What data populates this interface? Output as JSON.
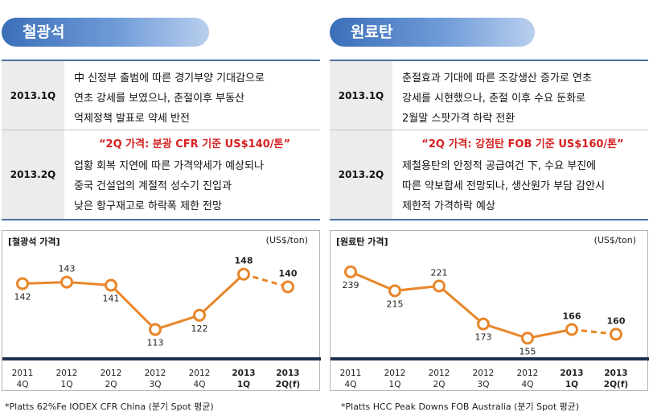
{
  "panels": [
    {
      "title": "철광석",
      "rows": [
        {
          "quarter": "2013.1Q",
          "lines": [
            "中 신정부 출범에 따른 경기부양 기대감으로",
            "연초 강세를 보였으나, 춘절이후 부동산",
            "억제정책 발표로 약세 반전"
          ]
        },
        {
          "quarter": "2013.2Q",
          "highlight": "“2Q 가격: 분광 CFR 기준 US$140/톤”",
          "lines": [
            "업황 회복 지연에 따른 가격약세가 예상되나",
            "중국 건설업의 계절적 성수기 진입과",
            "낮은 항구재고로 하락폭 제한 전망"
          ]
        }
      ],
      "footnote": "*Platts 62%Fe IODEX CFR China (분기 Spot 평균)"
    },
    {
      "title": "원료탄",
      "rows": [
        {
          "quarter": "2013.1Q",
          "lines": [
            "춘절효과 기대에 따른 조강생산 증가로 연초",
            "강세를 시현했으나, 춘절 이후 수요 둔화로",
            "2월말 스팟가격 하락 전환"
          ]
        },
        {
          "quarter": "2013.2Q",
          "highlight": "“2Q 가격: 강점탄 FOB 기준 US$160/톤”",
          "lines": [
            "제철용탄의 안정적 공급여건 下, 수요 부진에",
            "따른 약보합세 전망되나, 생산원가 부담 감안시",
            "제한적 가격하락 예상"
          ]
        }
      ],
      "footnote": "*Platts HCC Peak Downs FOB Australia (분기 Spot 평균)"
    }
  ],
  "colors": {
    "line": "#e8862a",
    "axis": "#1f3350",
    "label": "#222222"
  },
  "chart_data": [
    {
      "type": "line",
      "title": "[철광석 가격]",
      "unit": "(US$/ton)",
      "categories": [
        [
          "2011",
          "4Q"
        ],
        [
          "2012",
          "1Q"
        ],
        [
          "2012",
          "2Q"
        ],
        [
          "2012",
          "3Q"
        ],
        [
          "2012",
          "4Q"
        ],
        [
          "2013",
          "1Q"
        ],
        [
          "2013",
          "2Q(f)"
        ]
      ],
      "bold_categories": [
        5,
        6
      ],
      "values": [
        142,
        143,
        141,
        113,
        122,
        148,
        140
      ],
      "forecast_from_index": 5,
      "bold_values": [
        5,
        6
      ],
      "ylim": [
        100,
        155
      ]
    },
    {
      "type": "line",
      "title": "[원료탄 가격]",
      "unit": "(US$/ton)",
      "categories": [
        [
          "2011",
          "4Q"
        ],
        [
          "2012",
          "1Q"
        ],
        [
          "2012",
          "2Q"
        ],
        [
          "2012",
          "3Q"
        ],
        [
          "2012",
          "4Q"
        ],
        [
          "2013",
          "1Q"
        ],
        [
          "2013",
          "2Q(f)"
        ]
      ],
      "bold_categories": [
        5,
        6
      ],
      "values": [
        239,
        215,
        221,
        173,
        155,
        166,
        160
      ],
      "forecast_from_index": 5,
      "bold_values": [
        5,
        6
      ],
      "ylim": [
        140,
        250
      ]
    }
  ]
}
